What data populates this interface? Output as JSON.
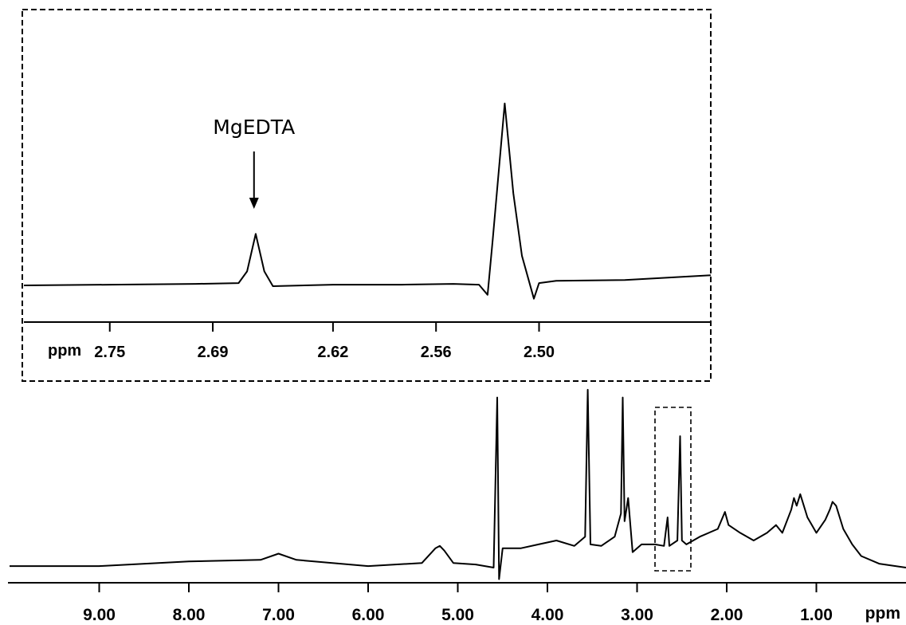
{
  "chart_data": [
    {
      "type": "line",
      "panel": "main",
      "xlabel": "ppm",
      "x_reversed": true,
      "xlim": [
        10.0,
        0.0
      ],
      "ticks": [
        9.0,
        8.0,
        7.0,
        6.0,
        5.0,
        4.0,
        3.0,
        2.0,
        1.0
      ],
      "tick_labels": [
        "9.00",
        "8.00",
        "7.00",
        "6.00",
        "5.00",
        "4.00",
        "3.00",
        "2.00",
        "1.00"
      ],
      "y_axis_shown": false,
      "highlight_region": [
        2.8,
        2.4
      ],
      "series": [
        {
          "x": [
            10.0,
            9.0,
            8.0,
            7.2,
            7.0,
            6.8,
            6.0,
            5.4,
            5.25,
            5.2,
            5.15,
            5.05,
            4.8,
            4.6,
            4.56,
            4.54,
            4.5,
            4.3,
            4.1,
            3.9,
            3.7,
            3.58,
            3.55,
            3.52,
            3.4,
            3.25,
            3.18,
            3.16,
            3.14,
            3.1,
            3.05,
            2.95,
            2.8,
            2.7,
            2.66,
            2.64,
            2.55,
            2.52,
            2.5,
            2.45,
            2.3,
            2.1,
            2.02,
            1.98,
            1.85,
            1.7,
            1.55,
            1.45,
            1.38,
            1.28,
            1.25,
            1.22,
            1.18,
            1.1,
            1.0,
            0.9,
            0.85,
            0.82,
            0.78,
            0.7,
            0.6,
            0.5,
            0.3,
            0.0
          ],
          "y": [
            2,
            2,
            8,
            10,
            18,
            10,
            2,
            6,
            25,
            28,
            22,
            6,
            4,
            0,
            220,
            -15,
            25,
            25,
            30,
            35,
            28,
            40,
            230,
            30,
            28,
            40,
            70,
            220,
            60,
            90,
            20,
            30,
            30,
            28,
            65,
            28,
            35,
            170,
            35,
            30,
            40,
            50,
            72,
            55,
            45,
            35,
            45,
            55,
            45,
            75,
            90,
            80,
            95,
            65,
            45,
            62,
            75,
            85,
            80,
            50,
            30,
            15,
            5,
            0
          ]
        }
      ]
    },
    {
      "type": "line",
      "panel": "inset",
      "xlabel": "ppm",
      "x_reversed": true,
      "xlim": [
        2.8,
        2.4
      ],
      "ticks": [
        2.75,
        2.69,
        2.62,
        2.56,
        2.5
      ],
      "tick_labels": [
        "2.75",
        "2.69",
        "2.62",
        "2.56",
        "2.50"
      ],
      "y_axis_shown": false,
      "series": [
        {
          "x": [
            2.8,
            2.75,
            2.7,
            2.675,
            2.67,
            2.665,
            2.66,
            2.655,
            2.62,
            2.58,
            2.55,
            2.535,
            2.53,
            2.527,
            2.52,
            2.515,
            2.51,
            2.503,
            2.5,
            2.49,
            2.45,
            2.4
          ],
          "y": [
            2,
            3,
            4,
            5,
            20,
            68,
            20,
            1,
            3,
            3,
            4,
            3,
            -10,
            60,
            235,
            120,
            40,
            -15,
            5,
            8,
            9,
            15
          ]
        }
      ],
      "annotations": [
        {
          "text": "MgEDTA",
          "x": 2.666,
          "arrow": true
        }
      ]
    }
  ]
}
